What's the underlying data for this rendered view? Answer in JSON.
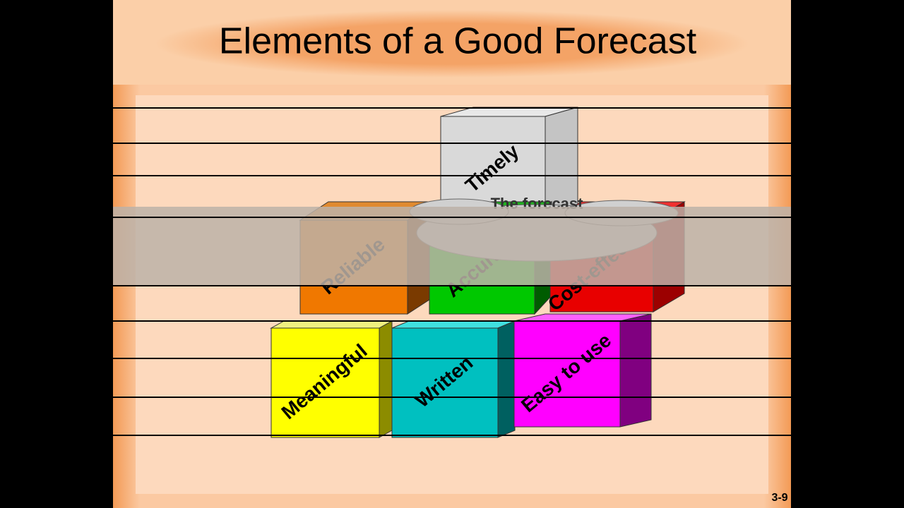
{
  "slide": {
    "title": "Elements of a Good Forecast",
    "cloud_text": "The forecast",
    "page_number": "3-9",
    "elements": [
      "Timely",
      "Reliable",
      "Accurate",
      "Cost-effective",
      "Meaningful",
      "Written",
      "Easy to use"
    ]
  }
}
